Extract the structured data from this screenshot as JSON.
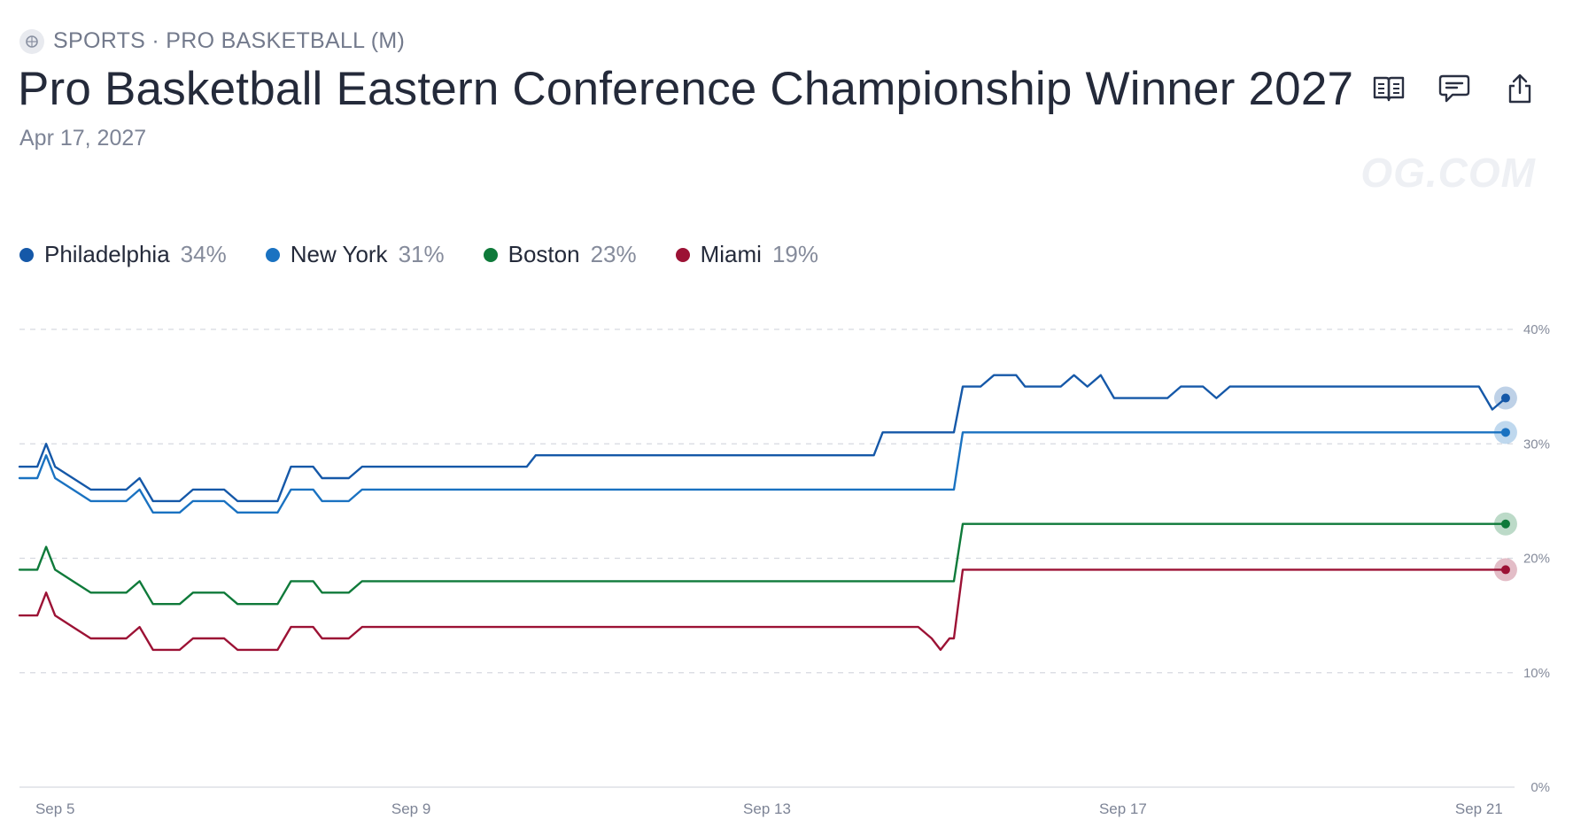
{
  "breadcrumb": "SPORTS · PRO BASKETBALL (M)",
  "title": "Pro Basketball Eastern Conference Championship Winner 2027",
  "date": "Apr 17, 2027",
  "watermark": "OG.COM",
  "actions": [
    {
      "icon": "book-icon"
    },
    {
      "icon": "comment-icon"
    },
    {
      "icon": "share-icon"
    }
  ],
  "legend": [
    {
      "name": "Philadelphia",
      "pct": "34%",
      "color": "#1558a8"
    },
    {
      "name": "New York",
      "pct": "31%",
      "color": "#1a72c1"
    },
    {
      "name": "Boston",
      "pct": "23%",
      "color": "#0f7a3a"
    },
    {
      "name": "Miami",
      "pct": "19%",
      "color": "#9c1235"
    }
  ],
  "chart_data": {
    "type": "line",
    "x_ticks": [
      {
        "label": "Sep 5",
        "t": 5
      },
      {
        "label": "Sep 9",
        "t": 9
      },
      {
        "label": "Sep 13",
        "t": 13
      },
      {
        "label": "Sep 17",
        "t": 17
      },
      {
        "label": "Sep 21",
        "t": 21
      }
    ],
    "y_ticks": [
      "0%",
      "10%",
      "20%",
      "30%",
      "40%"
    ],
    "ylim": [
      0,
      40
    ],
    "xlim": [
      4.6,
      21.4
    ],
    "grid": true,
    "series": [
      {
        "name": "Philadelphia",
        "color": "#1558a8",
        "points": [
          [
            4.6,
            28
          ],
          [
            4.8,
            28
          ],
          [
            4.9,
            30
          ],
          [
            5.0,
            28
          ],
          [
            5.2,
            27
          ],
          [
            5.4,
            26
          ],
          [
            5.6,
            26
          ],
          [
            5.8,
            26
          ],
          [
            5.95,
            27
          ],
          [
            6.1,
            25
          ],
          [
            6.4,
            25
          ],
          [
            6.55,
            26
          ],
          [
            6.9,
            26
          ],
          [
            7.05,
            25
          ],
          [
            7.5,
            25
          ],
          [
            7.65,
            28
          ],
          [
            7.9,
            28
          ],
          [
            8.0,
            27
          ],
          [
            8.3,
            27
          ],
          [
            8.45,
            28
          ],
          [
            10.3,
            28
          ],
          [
            10.4,
            29
          ],
          [
            14.2,
            29
          ],
          [
            14.3,
            31
          ],
          [
            15.1,
            31
          ],
          [
            15.2,
            35
          ],
          [
            15.4,
            35
          ],
          [
            15.55,
            36
          ],
          [
            15.8,
            36
          ],
          [
            15.9,
            35
          ],
          [
            16.3,
            35
          ],
          [
            16.45,
            36
          ],
          [
            16.6,
            35
          ],
          [
            16.75,
            36
          ],
          [
            16.9,
            34
          ],
          [
            17.5,
            34
          ],
          [
            17.65,
            35
          ],
          [
            17.9,
            35
          ],
          [
            18.05,
            34
          ],
          [
            18.2,
            35
          ],
          [
            21.0,
            35
          ],
          [
            21.15,
            33
          ],
          [
            21.3,
            34
          ]
        ]
      },
      {
        "name": "New York",
        "color": "#1a72c1",
        "points": [
          [
            4.6,
            27
          ],
          [
            4.8,
            27
          ],
          [
            4.9,
            29
          ],
          [
            5.0,
            27
          ],
          [
            5.2,
            26
          ],
          [
            5.4,
            25
          ],
          [
            5.6,
            25
          ],
          [
            5.8,
            25
          ],
          [
            5.95,
            26
          ],
          [
            6.1,
            24
          ],
          [
            6.4,
            24
          ],
          [
            6.55,
            25
          ],
          [
            6.9,
            25
          ],
          [
            7.05,
            24
          ],
          [
            7.5,
            24
          ],
          [
            7.65,
            26
          ],
          [
            7.9,
            26
          ],
          [
            8.0,
            25
          ],
          [
            8.3,
            25
          ],
          [
            8.45,
            26
          ],
          [
            15.1,
            26
          ],
          [
            15.2,
            31
          ],
          [
            21.3,
            31
          ]
        ]
      },
      {
        "name": "Boston",
        "color": "#0f7a3a",
        "points": [
          [
            4.6,
            19
          ],
          [
            4.8,
            19
          ],
          [
            4.9,
            21
          ],
          [
            5.0,
            19
          ],
          [
            5.2,
            18
          ],
          [
            5.4,
            17
          ],
          [
            5.6,
            17
          ],
          [
            5.8,
            17
          ],
          [
            5.95,
            18
          ],
          [
            6.1,
            16
          ],
          [
            6.4,
            16
          ],
          [
            6.55,
            17
          ],
          [
            6.9,
            17
          ],
          [
            7.05,
            16
          ],
          [
            7.5,
            16
          ],
          [
            7.65,
            18
          ],
          [
            7.9,
            18
          ],
          [
            8.0,
            17
          ],
          [
            8.3,
            17
          ],
          [
            8.45,
            18
          ],
          [
            15.1,
            18
          ],
          [
            15.2,
            23
          ],
          [
            21.3,
            23
          ]
        ]
      },
      {
        "name": "Miami",
        "color": "#9c1235",
        "points": [
          [
            4.6,
            15
          ],
          [
            4.8,
            15
          ],
          [
            4.9,
            17
          ],
          [
            5.0,
            15
          ],
          [
            5.2,
            14
          ],
          [
            5.4,
            13
          ],
          [
            5.6,
            13
          ],
          [
            5.8,
            13
          ],
          [
            5.95,
            14
          ],
          [
            6.1,
            12
          ],
          [
            6.4,
            12
          ],
          [
            6.55,
            13
          ],
          [
            6.9,
            13
          ],
          [
            7.05,
            12
          ],
          [
            7.5,
            12
          ],
          [
            7.65,
            14
          ],
          [
            7.9,
            14
          ],
          [
            8.0,
            13
          ],
          [
            8.3,
            13
          ],
          [
            8.45,
            14
          ],
          [
            14.7,
            14
          ],
          [
            14.85,
            13
          ],
          [
            14.95,
            12
          ],
          [
            15.05,
            13
          ],
          [
            15.1,
            13
          ],
          [
            15.2,
            19
          ],
          [
            21.3,
            19
          ]
        ]
      }
    ]
  }
}
